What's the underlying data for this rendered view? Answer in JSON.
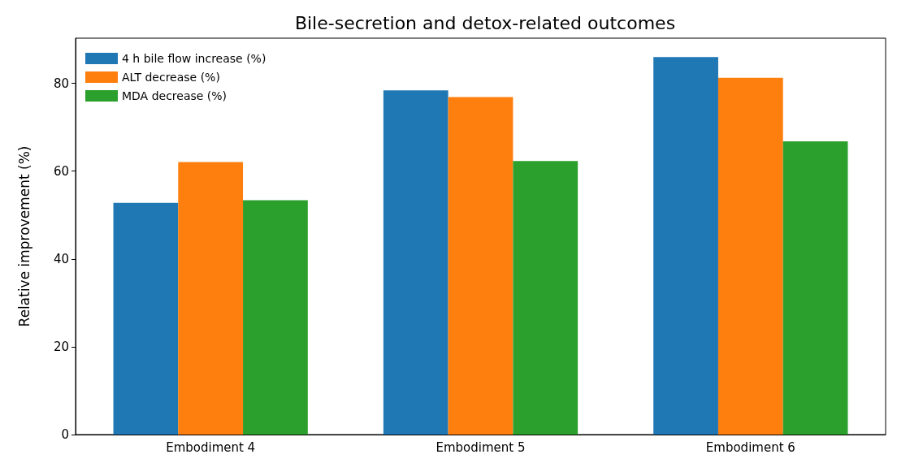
{
  "chart_data": {
    "type": "bar",
    "title": "Bile-secretion and detox-related outcomes",
    "ylabel": "Relative improvement (%)",
    "categories": [
      "Embodiment 4",
      "Embodiment 5",
      "Embodiment 6"
    ],
    "series": [
      {
        "name": "4 h bile flow increase (%)",
        "color": "#1f77b4",
        "values": [
          52.8,
          78.4,
          86.0
        ]
      },
      {
        "name": "ALT decrease (%)",
        "color": "#ff7f0e",
        "values": [
          62.1,
          76.9,
          81.3
        ]
      },
      {
        "name": "MDA decrease (%)",
        "color": "#2ca02c",
        "values": [
          53.4,
          62.3,
          66.8
        ]
      }
    ],
    "ylim": [
      0,
      90.3
    ],
    "yticks": [
      0,
      20,
      40,
      60,
      80
    ],
    "grid": false,
    "legend": "top left"
  }
}
